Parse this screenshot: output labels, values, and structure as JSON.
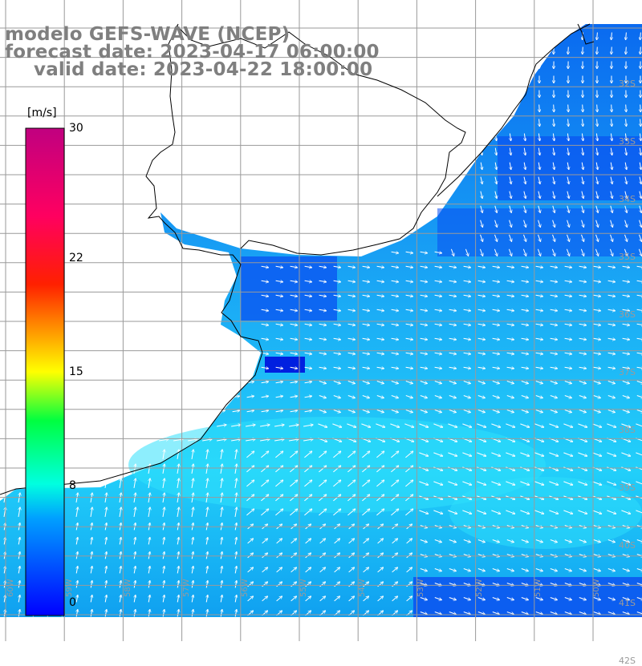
{
  "header": {
    "line1": "modelo GEFS-WAVE (NCEP)",
    "line2": "forecast date: 2023-04-17 06:00:00",
    "line3": "valid date: 2023-04-22 18:00:00"
  },
  "colorbar": {
    "unit": "[m/s]",
    "ticks": [
      {
        "label": "30",
        "value": 30
      },
      {
        "label": "22",
        "value": 22
      },
      {
        "label": "15",
        "value": 15
      },
      {
        "label": "8",
        "value": 8
      },
      {
        "label": "0",
        "value": 0
      }
    ],
    "range": [
      0,
      30
    ]
  },
  "grid": {
    "lat_labels": [
      "32S",
      "33S",
      "34S",
      "35S",
      "36S",
      "37S",
      "38S",
      "39S",
      "40S",
      "41S",
      "42S"
    ],
    "lon_labels": [
      "60W",
      "59W",
      "58W",
      "57W",
      "56W",
      "55W",
      "54W",
      "53W",
      "52W",
      "51W",
      "50W"
    ]
  },
  "colors": {
    "land": "#ffffff",
    "coast": "#000000",
    "grid": "#9a9a9a",
    "arrows": "#ffffff",
    "title": "#7f7f7f"
  }
}
